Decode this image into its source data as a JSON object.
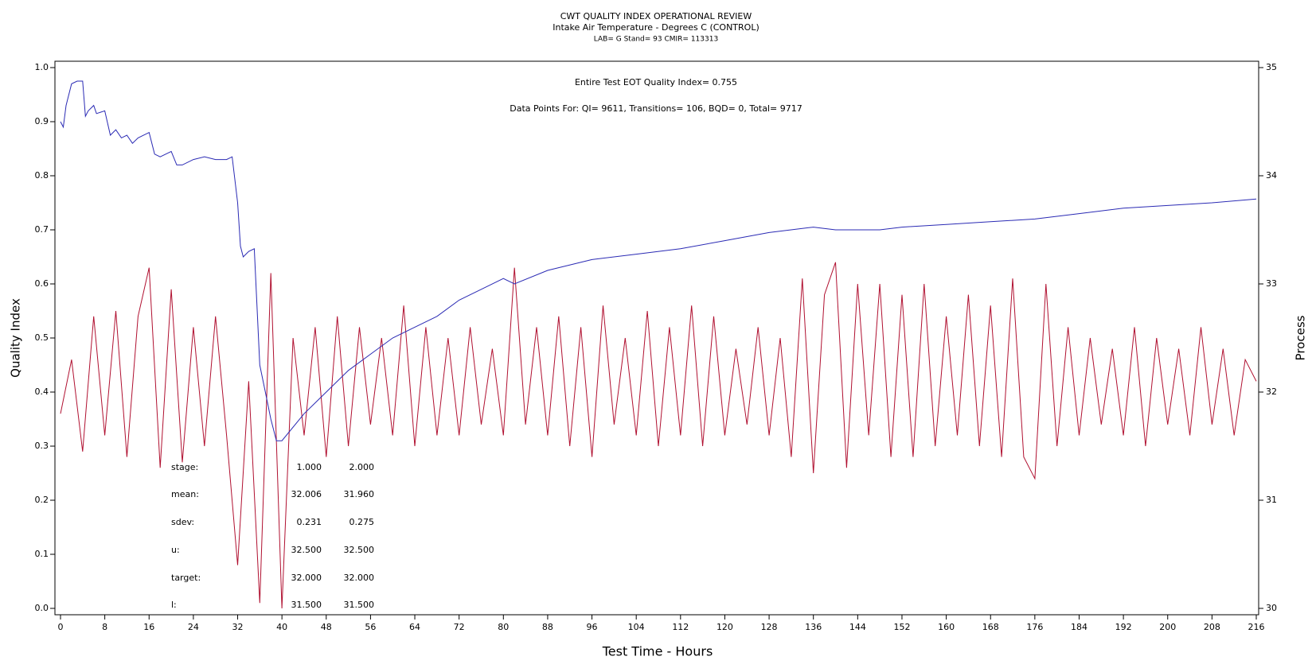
{
  "chart_data": {
    "type": "line",
    "title": "CWT QUALITY INDEX OPERATIONAL REVIEW",
    "subtitle": "Intake Air Temperature - Degrees C (CONTROL)",
    "subtitle2": "LAB= G Stand= 93 CMIR= 113313",
    "annotations": [
      "Entire Test EOT Quality Index=   0.755",
      "Data Points For: QI=  9611, Transitions=   106, BQD=    0, Total=  9717"
    ],
    "stats": [
      [
        "stage:",
        "1.000",
        "2.000"
      ],
      [
        "mean:",
        "32.006",
        "31.960"
      ],
      [
        "sdev:",
        "0.231",
        "0.275"
      ],
      [
        "u:",
        "32.500",
        "32.500"
      ],
      [
        "target:",
        "32.000",
        "32.000"
      ],
      [
        "l:",
        "31.500",
        "31.500"
      ]
    ],
    "xlabel": "Test Time - Hours",
    "ylabel": "Quality Index",
    "y2label": "Process",
    "xlim": [
      0,
      216
    ],
    "xticks": [
      0,
      8,
      16,
      24,
      32,
      40,
      48,
      56,
      64,
      72,
      80,
      88,
      96,
      104,
      112,
      120,
      128,
      136,
      144,
      152,
      160,
      168,
      176,
      184,
      192,
      200,
      208,
      216
    ],
    "ylim": [
      0,
      1
    ],
    "yticks": [
      {
        "value": 0,
        "label": "0.0"
      },
      0.1,
      0.2,
      0.3,
      0.4,
      0.5,
      0.6,
      0.7,
      0.8,
      0.9,
      {
        "value": 1,
        "label": "1.0"
      }
    ],
    "y2lim": [
      30,
      35
    ],
    "y2ticks": [
      30,
      31,
      32,
      33,
      34,
      35
    ],
    "series": [
      {
        "name": "Quality Index",
        "color": "#2a2ab4",
        "x": [
          0,
          0.5,
          1,
          2,
          3,
          4,
          4.5,
          5,
          6,
          6.5,
          8,
          9,
          10,
          11,
          12,
          13,
          14,
          16,
          17,
          18,
          20,
          21,
          22,
          24,
          26,
          28,
          30,
          31,
          32,
          32.5,
          33,
          34,
          35,
          36,
          37,
          38,
          39,
          40,
          44,
          48,
          52,
          56,
          60,
          64,
          68,
          72,
          76,
          80,
          82,
          88,
          96,
          104,
          112,
          120,
          128,
          136,
          140,
          148,
          152,
          160,
          168,
          176,
          184,
          192,
          200,
          208,
          216
        ],
        "values": [
          0.9,
          0.89,
          0.93,
          0.97,
          0.975,
          0.975,
          0.91,
          0.92,
          0.93,
          0.915,
          0.92,
          0.875,
          0.885,
          0.87,
          0.875,
          0.86,
          0.87,
          0.88,
          0.84,
          0.835,
          0.845,
          0.82,
          0.82,
          0.83,
          0.835,
          0.83,
          0.83,
          0.835,
          0.75,
          0.67,
          0.65,
          0.66,
          0.665,
          0.45,
          0.4,
          0.35,
          0.31,
          0.31,
          0.36,
          0.4,
          0.44,
          0.47,
          0.5,
          0.52,
          0.54,
          0.57,
          0.59,
          0.61,
          0.6,
          0.625,
          0.645,
          0.655,
          0.665,
          0.68,
          0.695,
          0.705,
          0.7,
          0.7,
          0.705,
          0.71,
          0.715,
          0.72,
          0.73,
          0.74,
          0.745,
          0.75,
          0.757
        ]
      },
      {
        "name": "Process",
        "color": "#b01030",
        "axis": "y2",
        "x": [
          0,
          2,
          4,
          6,
          8,
          10,
          12,
          14,
          16,
          18,
          20,
          22,
          24,
          26,
          28,
          30,
          32,
          34,
          36,
          38,
          40,
          42,
          44,
          46,
          48,
          50,
          52,
          54,
          56,
          58,
          60,
          62,
          64,
          66,
          68,
          70,
          72,
          74,
          76,
          78,
          80,
          82,
          84,
          86,
          88,
          90,
          92,
          94,
          96,
          98,
          100,
          102,
          104,
          106,
          108,
          110,
          112,
          114,
          116,
          118,
          120,
          122,
          124,
          126,
          128,
          130,
          132,
          134,
          136,
          138,
          140,
          142,
          144,
          146,
          148,
          150,
          152,
          154,
          156,
          158,
          160,
          162,
          164,
          166,
          168,
          170,
          172,
          174,
          176,
          178,
          180,
          182,
          184,
          186,
          188,
          190,
          192,
          194,
          196,
          198,
          200,
          202,
          204,
          206,
          208,
          210,
          212,
          214,
          216
        ],
        "values": [
          31.8,
          32.3,
          31.45,
          32.7,
          31.6,
          32.75,
          31.4,
          32.7,
          33.15,
          31.3,
          32.95,
          31.35,
          32.6,
          31.5,
          32.7,
          31.6,
          30.4,
          32.1,
          30.05,
          33.1,
          30.0,
          32.5,
          31.6,
          32.6,
          31.4,
          32.7,
          31.5,
          32.6,
          31.7,
          32.5,
          31.6,
          32.8,
          31.5,
          32.6,
          31.6,
          32.5,
          31.6,
          32.6,
          31.7,
          32.4,
          31.6,
          33.15,
          31.7,
          32.6,
          31.6,
          32.7,
          31.5,
          32.6,
          31.4,
          32.8,
          31.7,
          32.5,
          31.6,
          32.75,
          31.5,
          32.6,
          31.6,
          32.8,
          31.5,
          32.7,
          31.6,
          32.4,
          31.7,
          32.6,
          31.6,
          32.5,
          31.4,
          33.05,
          31.25,
          32.9,
          33.2,
          31.3,
          33.0,
          31.6,
          33.0,
          31.4,
          32.9,
          31.4,
          33.0,
          31.5,
          32.7,
          31.6,
          32.9,
          31.5,
          32.8,
          31.4,
          33.05,
          31.4,
          31.2,
          33.0,
          31.5,
          32.6,
          31.6,
          32.5,
          31.7,
          32.4,
          31.6,
          32.6,
          31.5,
          32.5,
          31.7,
          32.4,
          31.6,
          32.6,
          31.7,
          32.4,
          31.6,
          32.3,
          32.1
        ]
      }
    ]
  }
}
